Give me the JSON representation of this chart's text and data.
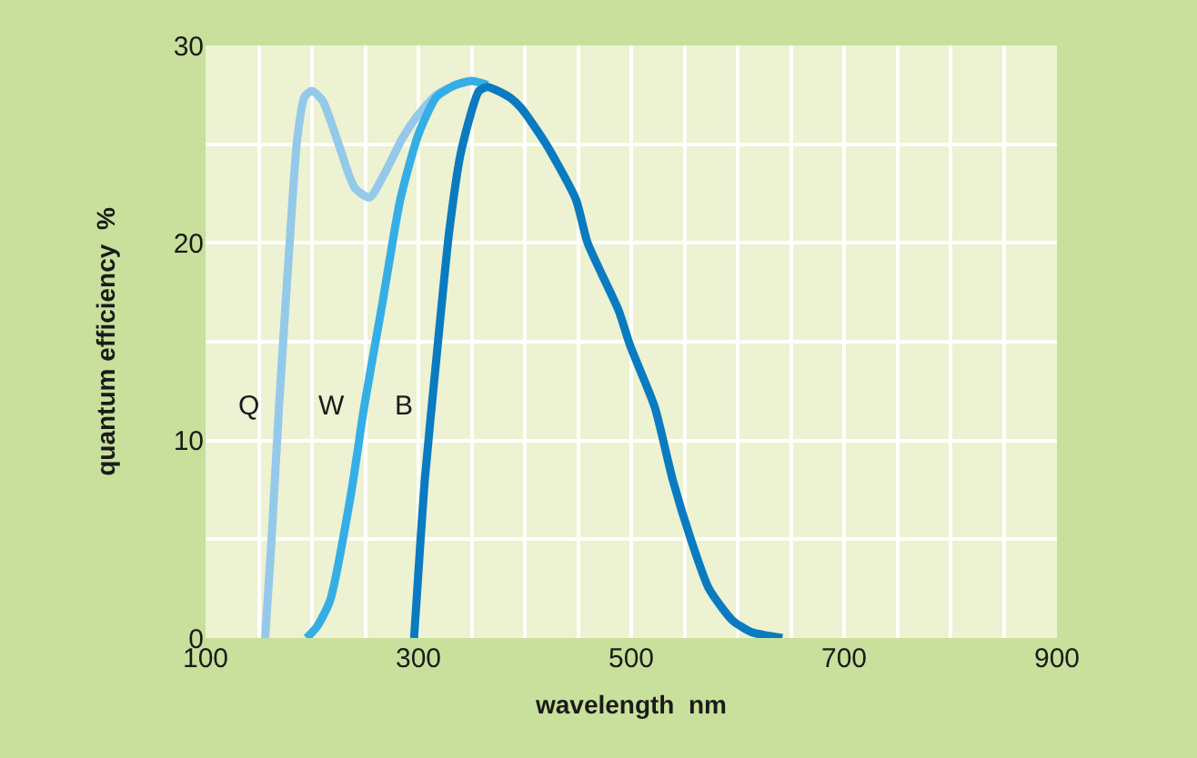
{
  "chart_data": {
    "type": "line",
    "xlabel": "wavelength  nm",
    "ylabel": "quantum efficiency  %",
    "xlim": [
      100,
      900
    ],
    "ylim": [
      0,
      30
    ],
    "xticks": [
      100,
      {
        "value": 150,
        "label": null
      },
      {
        "value": 200,
        "label": null
      },
      {
        "value": 250,
        "label": null
      },
      300,
      {
        "value": 350,
        "label": null
      },
      {
        "value": 400,
        "label": null
      },
      {
        "value": 450,
        "label": null
      },
      500,
      {
        "value": 550,
        "label": null
      },
      {
        "value": 600,
        "label": null
      },
      {
        "value": 650,
        "label": null
      },
      700,
      {
        "value": 750,
        "label": null
      },
      {
        "value": 800,
        "label": null
      },
      {
        "value": 850,
        "label": null
      },
      900
    ],
    "yticks": [
      0,
      {
        "value": 5,
        "label": null
      },
      10,
      {
        "value": 15,
        "label": null
      },
      20,
      {
        "value": 25,
        "label": null
      },
      30
    ],
    "grid": true,
    "legend": false,
    "marker": "none",
    "line_style": "solid",
    "series": [
      {
        "name": "Q",
        "color": "#94c9ea",
        "x": [
          156,
          162,
          169,
          179,
          186,
          193,
          200,
          210,
          225,
          240,
          254,
          268,
          285,
          300,
          317,
          335,
          350
        ],
        "values": [
          0,
          5,
          11.7,
          20,
          25.2,
          27.4,
          27.7,
          27.2,
          25,
          22.8,
          22.3,
          23.5,
          25.3,
          26.5,
          27.5,
          28,
          28.2
        ]
      },
      {
        "name": "W",
        "color": "#35aee6",
        "x": [
          195,
          205,
          217,
          237,
          249,
          266,
          283,
          300,
          317,
          335,
          350,
          365
        ],
        "values": [
          0,
          0.6,
          1.9,
          7.4,
          11.7,
          16.9,
          22.2,
          25.5,
          27.4,
          28,
          28.2,
          28
        ]
      },
      {
        "name": "B",
        "color": "#0a7bc1",
        "x": [
          296,
          306,
          317,
          329,
          340,
          357,
          365,
          385,
          397,
          420,
          448,
          459,
          488,
          499,
          522,
          539,
          556,
          573,
          595,
          613,
          642
        ],
        "values": [
          0,
          8,
          14.2,
          20.6,
          24.6,
          27.7,
          27.9,
          27.4,
          26.8,
          25,
          22.2,
          20,
          16.6,
          14.8,
          11.7,
          8,
          5,
          2.5,
          0.9,
          0.3,
          0
        ]
      }
    ]
  }
}
